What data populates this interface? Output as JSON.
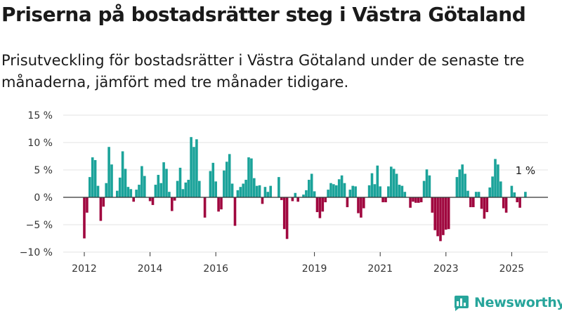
{
  "header": {
    "title": "Priserna på bostadsrätter steg i Västra Götaland",
    "subtitle": "Prisutveckling för bostadsrätter i Västra Götaland under de senaste tre månaderna, jämfört med tre månader tidigare."
  },
  "brand": {
    "name": "Newsworthy",
    "icon": "bar-chart-logo-icon",
    "color": "#27a59b"
  },
  "colors": {
    "positive": "#1ba39a",
    "negative": "#a0073f",
    "grid": "#e3e3e3",
    "zero_line": "#333333"
  },
  "chart_data": {
    "type": "bar",
    "x_start": "2012-01",
    "x_step": "month",
    "ylim": [
      -10,
      15
    ],
    "yticks": [
      -10,
      -5,
      0,
      5,
      10,
      15
    ],
    "ytick_labels": [
      "−10 %",
      "−5 %",
      "0 %",
      "5 %",
      "10 %",
      "15 %"
    ],
    "xticks": [
      "2012",
      "2014",
      "2016",
      "2019",
      "2021",
      "2023",
      "2025"
    ],
    "grid": true,
    "annotation": {
      "text": "1 %",
      "value": 1
    },
    "values": [
      -7.5,
      -2.8,
      3.7,
      7.3,
      6.8,
      2.1,
      -4.3,
      -1.7,
      2.6,
      9.2,
      6.0,
      0.0,
      1.2,
      3.6,
      8.4,
      5.2,
      1.9,
      1.5,
      -0.8,
      1.4,
      2.3,
      5.7,
      3.9,
      0.0,
      -0.7,
      -1.4,
      2.3,
      4.1,
      2.6,
      6.4,
      5.2,
      1.0,
      -2.5,
      -0.6,
      3.0,
      5.4,
      1.5,
      2.7,
      3.2,
      11.0,
      9.2,
      10.6,
      3.0,
      0.0,
      -3.7,
      0.0,
      4.8,
      6.3,
      2.9,
      -2.6,
      -2.2,
      4.9,
      6.5,
      7.9,
      2.5,
      -5.2,
      1.3,
      1.9,
      2.5,
      3.2,
      7.3,
      7.1,
      3.5,
      2.1,
      2.2,
      -1.2,
      1.9,
      1.0,
      2.1,
      0.0,
      0.0,
      3.7,
      -0.5,
      -5.8,
      -7.6,
      0.0,
      -0.7,
      0.8,
      -0.8,
      0.0,
      0.5,
      1.3,
      3.2,
      4.3,
      1.1,
      -2.7,
      -3.8,
      -2.6,
      -0.9,
      1.4,
      2.6,
      2.4,
      2.2,
      3.3,
      4.0,
      2.6,
      -1.8,
      1.4,
      2.1,
      2.0,
      -2.9,
      -3.7,
      -2.0,
      0.0,
      2.2,
      4.4,
      2.4,
      5.8,
      2.0,
      -0.9,
      -0.9,
      2.0,
      5.6,
      5.2,
      4.3,
      2.3,
      2.1,
      1.0,
      0.0,
      -1.9,
      -0.8,
      -1.0,
      -1.0,
      -0.9,
      3.0,
      5.1,
      4.0,
      -2.8,
      -6.0,
      -7.1,
      -8.0,
      -6.9,
      -5.9,
      -5.8,
      0.0,
      0.0,
      3.7,
      5.1,
      6.0,
      4.3,
      1.2,
      -1.8,
      -1.8,
      1.0,
      1.0,
      -2.1,
      -3.9,
      -2.7,
      1.8,
      3.8,
      7.0,
      6.0,
      2.9,
      -2.0,
      -2.8,
      0.0,
      2.1,
      0.9,
      -0.9,
      -1.9,
      0.0,
      1.0
    ]
  }
}
